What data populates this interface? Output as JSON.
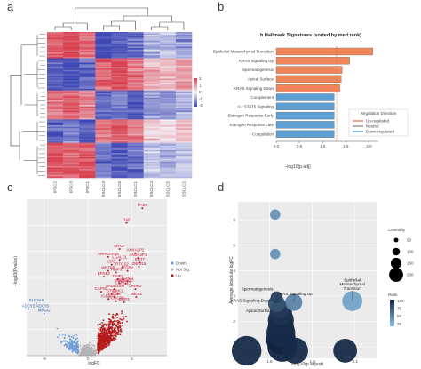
{
  "panels": {
    "a": "a",
    "b": "b",
    "c": "c",
    "d": "d"
  },
  "chart_data": [
    {
      "panel": "a",
      "type": "heatmap",
      "columns": [
        "iPSC2",
        "iPSC3",
        "iPSC1",
        "SSCLC3",
        "SSCLC6",
        "SSCLC1",
        "SSCLC4",
        "SSCLC5",
        "SSCLC2"
      ],
      "row_groups": [
        {
          "rows": 18,
          "values": [
            0.8,
            0.9,
            0.7,
            -1.0,
            -0.9,
            -0.8,
            -0.4,
            -0.3,
            -0.5
          ]
        },
        {
          "rows": 22,
          "values": [
            -0.9,
            -1.0,
            -0.8,
            0.8,
            0.9,
            0.7,
            0.4,
            0.3,
            0.5
          ]
        },
        {
          "rows": 20,
          "values": [
            0.7,
            0.8,
            0.6,
            -0.8,
            -0.7,
            -0.9,
            -0.5,
            -0.6,
            -0.4
          ]
        },
        {
          "rows": 16,
          "values": [
            -0.8,
            -0.7,
            -0.9,
            0.7,
            0.8,
            0.6,
            0.2,
            0.1,
            0.3
          ]
        },
        {
          "rows": 24,
          "values": [
            0.9,
            0.8,
            0.9,
            -0.7,
            -0.9,
            -0.8,
            -0.3,
            -0.4,
            -0.2
          ]
        }
      ],
      "colorbar": {
        "ticks": [
          "2",
          "1",
          "0",
          "-1",
          "-2"
        ],
        "colors": {
          "high": "#d9404f",
          "mid": "#f3f3f8",
          "low": "#3f49b5"
        }
      }
    },
    {
      "panel": "b",
      "type": "bar",
      "orientation": "horizontal",
      "title": "h Hallmark Signatures (sorted by med.rank)",
      "xlabel": "−log10(p.adj)",
      "xlim": [
        0,
        2.2
      ],
      "xticks": [
        "0.0",
        "0.5",
        "1.0",
        "1.5",
        "2.0"
      ],
      "threshold": 1.3,
      "categories": [
        "Epithelial Mesenchymal Transition",
        "KRAS Signaling Up",
        "Spermatogenesis",
        "Apical Surface",
        "KRAS Signaling Down",
        "Complement",
        "IL2 STAT5 Signaling",
        "Estrogen Response Early",
        "Estrogen Response Late",
        "Coagulation"
      ],
      "values": [
        2.08,
        1.58,
        1.42,
        1.4,
        1.37,
        1.25,
        1.25,
        1.25,
        1.25,
        1.25
      ],
      "direction": [
        "up",
        "up",
        "up",
        "up",
        "up",
        "down",
        "down",
        "down",
        "down",
        "down"
      ],
      "legend": {
        "title": "Regulation Direction",
        "items": [
          "Up-regulated",
          "Neutral",
          "Down-regulated"
        ],
        "position": "bottom-right"
      },
      "colors": {
        "up": "#f0865a",
        "down": "#5fa0d4",
        "neutral": "#999999",
        "threshold": "#e06a5a"
      }
    },
    {
      "panel": "c",
      "type": "scatter",
      "xlabel": "logFC",
      "ylabel": "−log10(Pvalue)",
      "xticks": [
        "-5",
        "0",
        "5"
      ],
      "xlim": [
        -7,
        9
      ],
      "ylim": [
        0,
        30
      ],
      "legend": {
        "items": [
          "Down",
          "Not Sig.",
          "Up"
        ],
        "position": "right"
      },
      "colors": {
        "down": "#6f9fd8",
        "notsig": "#b5b5b5",
        "up": "#b51a1a"
      },
      "labels_up": [
        {
          "text": "PAX6",
          "x": 6.2,
          "y": 28.6
        },
        {
          "text": "DAF",
          "x": 4.4,
          "y": 25.8
        },
        {
          "text": "MYOF",
          "x": 3.6,
          "y": 20.8
        },
        {
          "text": "ANXA2P2",
          "x": 5.4,
          "y": 20.0
        },
        {
          "text": "ARHGAP29",
          "x": 2.3,
          "y": 19.3
        },
        {
          "text": "ANXA2P1",
          "x": 5.7,
          "y": 19.1
        },
        {
          "text": "LGALS1",
          "x": 3.6,
          "y": 18.7
        },
        {
          "text": "KRT7",
          "x": 5.9,
          "y": 18.2
        },
        {
          "text": "CPE",
          "x": 2.7,
          "y": 17.8
        },
        {
          "text": "PTGS2",
          "x": 3.9,
          "y": 17.3
        },
        {
          "text": "ZNF316",
          "x": 5.8,
          "y": 17.4
        },
        {
          "text": "WNT5B",
          "x": 2.3,
          "y": 16.6
        },
        {
          "text": "TIMP3",
          "x": 3.2,
          "y": 16.3
        },
        {
          "text": "ITGB4",
          "x": 4.5,
          "y": 16.6
        },
        {
          "text": "EFNB2",
          "x": 1.8,
          "y": 15.5
        },
        {
          "text": "TIMP1",
          "x": 3.4,
          "y": 15.0
        },
        {
          "text": "SFRP1",
          "x": 4.5,
          "y": 14.6
        },
        {
          "text": "NRD1",
          "x": 3.6,
          "y": 14.2
        },
        {
          "text": "SEMA3C",
          "x": 4.3,
          "y": 14.2
        },
        {
          "text": "GADD45A",
          "x": 3.0,
          "y": 13.1
        },
        {
          "text": "LRRC15",
          "x": 4.0,
          "y": 13.7
        },
        {
          "text": "CAPN2",
          "x": 1.5,
          "y": 12.6
        },
        {
          "text": "BTG2",
          "x": 2.7,
          "y": 12.2
        },
        {
          "text": "DKK1",
          "x": 3.4,
          "y": 12.2
        },
        {
          "text": "LRRK2",
          "x": 5.4,
          "y": 13.1
        },
        {
          "text": "PLCB4",
          "x": 3.0,
          "y": 11.6
        },
        {
          "text": "IGFBP3",
          "x": 2.3,
          "y": 11.2
        },
        {
          "text": "CCDC80",
          "x": 3.2,
          "y": 10.8
        },
        {
          "text": "EMP3",
          "x": 4.1,
          "y": 10.6
        },
        {
          "text": "MEIS1",
          "x": 5.5,
          "y": 11.6
        }
      ],
      "labels_down": [
        {
          "text": "SLC7A8",
          "x": -5.9,
          "y": 10.4
        },
        {
          "text": "ADCY2",
          "x": -6.8,
          "y": 9.3
        },
        {
          "text": "ADCY5",
          "x": -5.2,
          "y": 9.3
        },
        {
          "text": "MAGI2",
          "x": -5.0,
          "y": 8.4
        }
      ]
    },
    {
      "panel": "d",
      "type": "scatter",
      "subtype": "bubble",
      "xlabel": "−log10(p.adjust)",
      "ylabel": "Average Absolute logFC",
      "xticks": [
        "1.5",
        "1.8",
        "2.1"
      ],
      "xlim": [
        1.28,
        2.25
      ],
      "yticks": [
        "1",
        "2",
        "3",
        "4",
        "5",
        "6"
      ],
      "ylim": [
        0.55,
        6.7
      ],
      "points": [
        {
          "x": 1.54,
          "y": 6.2,
          "centrality": 20,
          "rank": 30
        },
        {
          "x": 1.54,
          "y": 4.65,
          "centrality": 20,
          "rank": 30
        },
        {
          "x": 1.55,
          "y": 2.95,
          "centrality": 30,
          "rank": 80,
          "label": "Spermatogenesis"
        },
        {
          "x": 1.55,
          "y": 2.7,
          "centrality": 80,
          "rank": 70,
          "label": "KRAS Signaling Down"
        },
        {
          "x": 1.57,
          "y": 2.5,
          "centrality": 100,
          "rank": 85,
          "label": "Apical Surface"
        },
        {
          "x": 1.58,
          "y": 2.3,
          "centrality": 160,
          "rank": 90
        },
        {
          "x": 1.58,
          "y": 2.05,
          "centrality": 220,
          "rank": 95
        },
        {
          "x": 1.58,
          "y": 1.8,
          "centrality": 220,
          "rank": 95
        },
        {
          "x": 1.58,
          "y": 1.55,
          "centrality": 280,
          "rank": 95
        },
        {
          "x": 1.58,
          "y": 1.3,
          "centrality": 300,
          "rank": 100
        },
        {
          "x": 1.59,
          "y": 1.0,
          "centrality": 300,
          "rank": 100
        },
        {
          "x": 1.34,
          "y": 0.85,
          "centrality": 300,
          "rank": 95
        },
        {
          "x": 1.68,
          "y": 0.85,
          "centrality": 220,
          "rank": 95
        },
        {
          "x": 2.03,
          "y": 0.85,
          "centrality": 180,
          "rank": 95
        },
        {
          "x": 1.67,
          "y": 2.75,
          "centrality": 80,
          "rank": 40,
          "label": "KRAS Signaling Up"
        },
        {
          "x": 2.08,
          "y": 2.8,
          "centrality": 120,
          "rank": 20,
          "label": "Epithelial Mesenchymal Transition"
        }
      ],
      "legend": {
        "centrality_title": "Centrality",
        "centrality_ticks": [
          "50",
          "100",
          "150",
          "200"
        ],
        "rank_title": "Rank",
        "rank_ticks": [
          "100",
          "75",
          "50",
          "25"
        ],
        "rank_colors": {
          "low": "#8dc3ea",
          "high": "#10233f"
        }
      }
    }
  ]
}
